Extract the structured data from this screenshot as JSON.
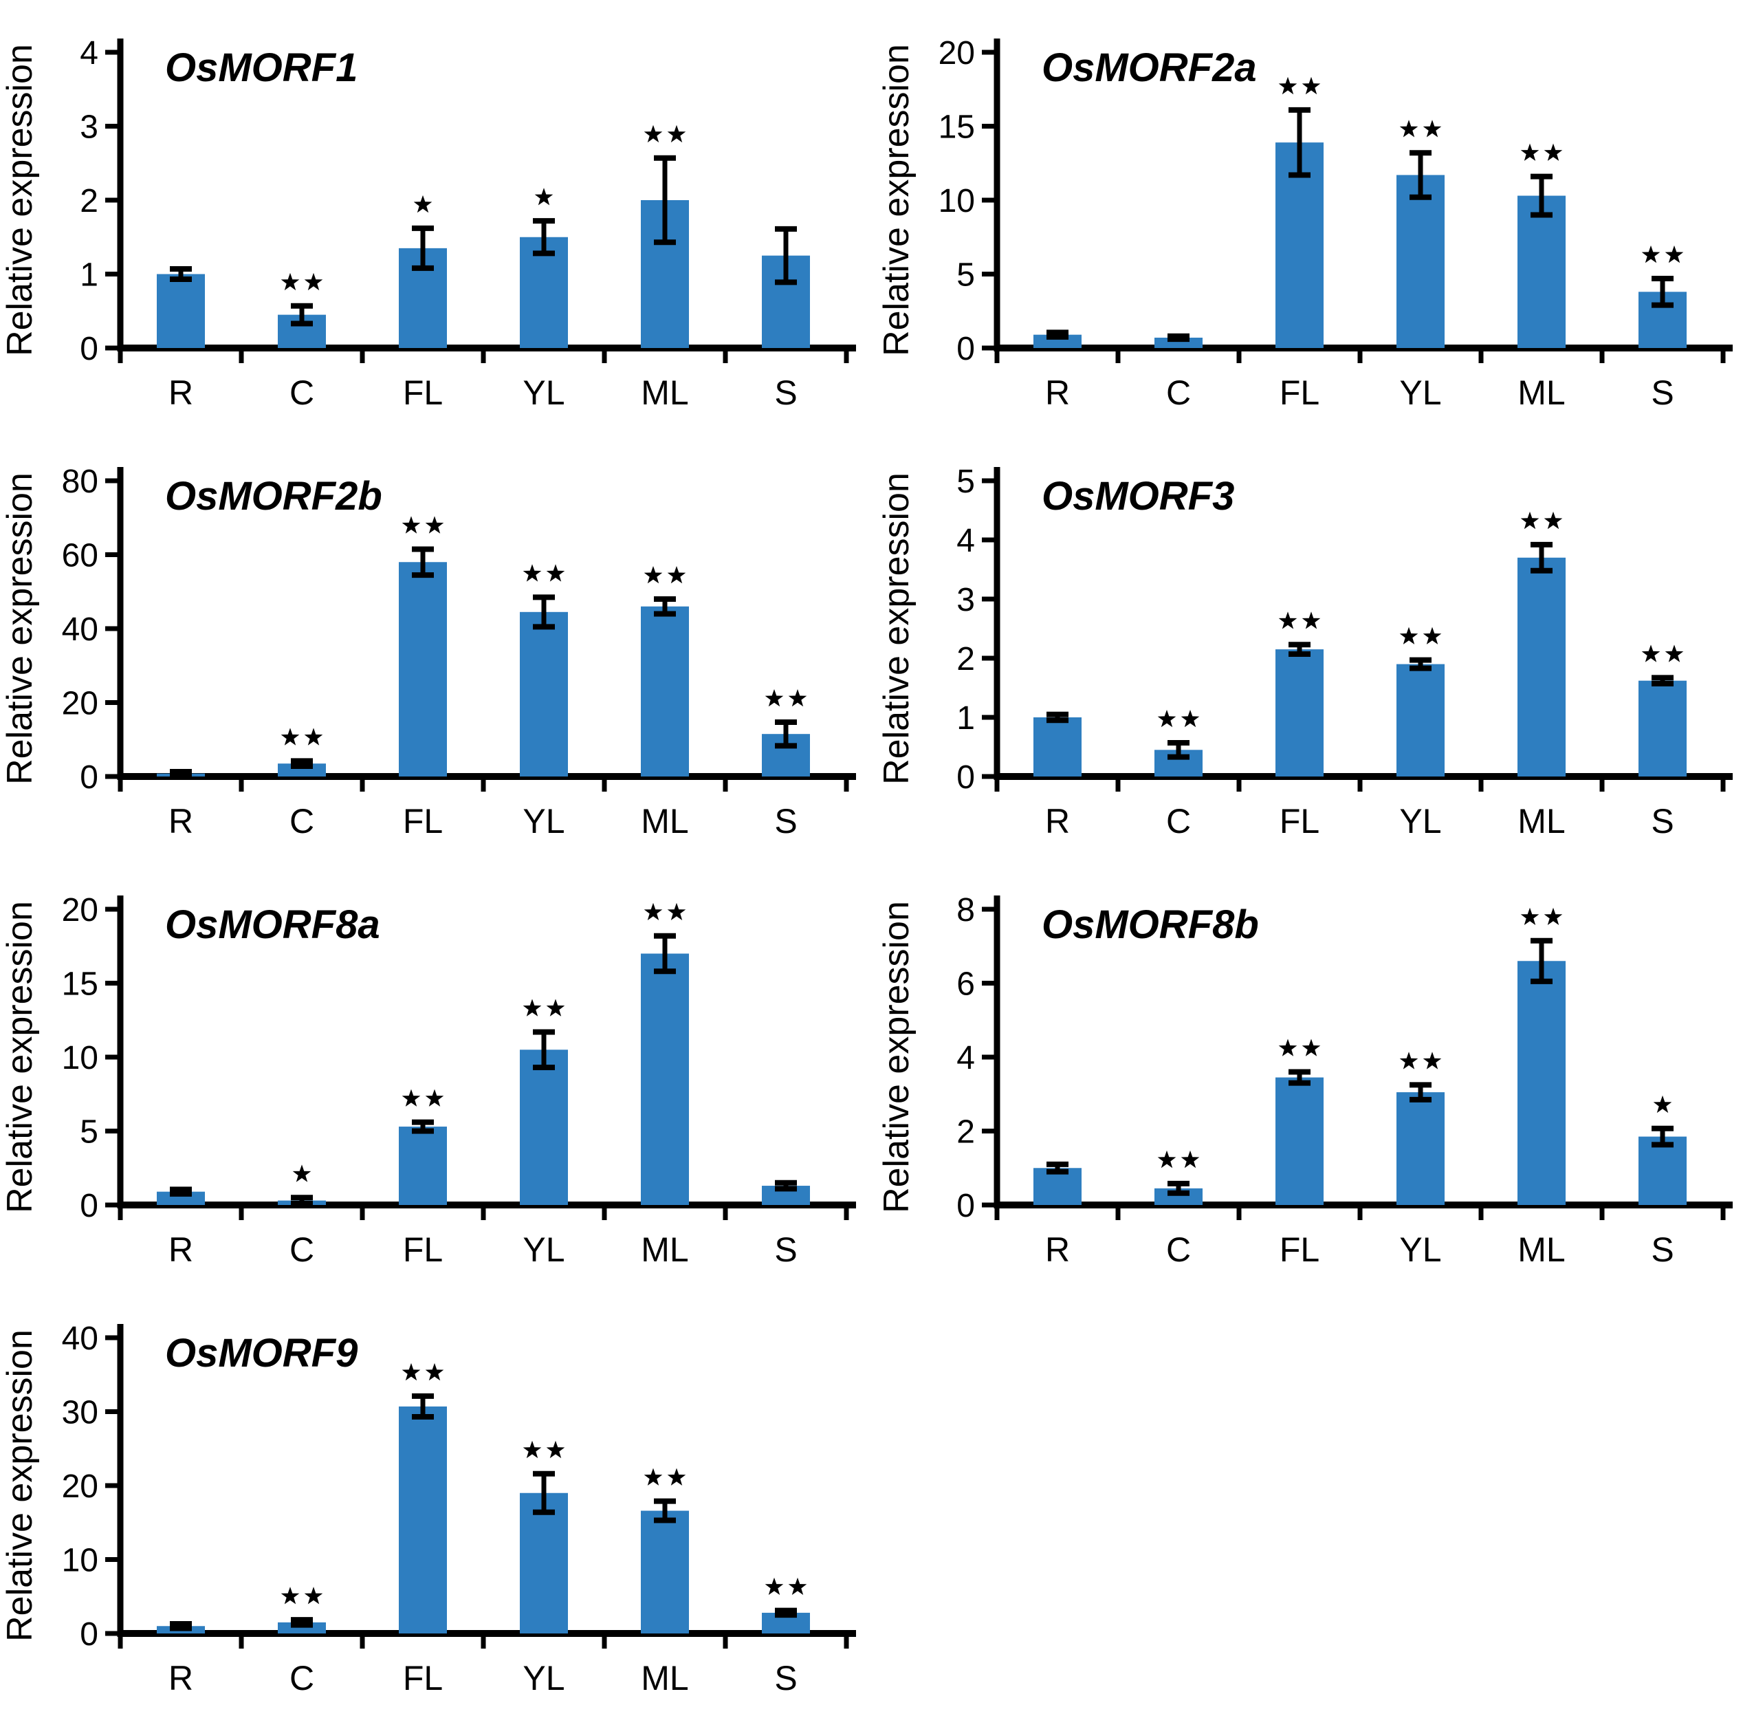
{
  "figure": {
    "background": "#ffffff",
    "bar_color": "#2e7ec0",
    "axis_color": "#000000",
    "error_bar_color": "#000000",
    "significance_marker": "star-icon",
    "ylabel": "Relative expression",
    "categories": [
      "R",
      "C",
      "FL",
      "YL",
      "ML",
      "S"
    ]
  },
  "chart_data": [
    {
      "type": "bar",
      "title": "OsMORF1",
      "xlabel": "",
      "ylabel": "Relative expression",
      "categories": [
        "R",
        "C",
        "FL",
        "YL",
        "ML",
        "S"
      ],
      "values": [
        1.0,
        0.45,
        1.35,
        1.5,
        2.0,
        1.25
      ],
      "errors": [
        0.07,
        0.12,
        0.27,
        0.22,
        0.57,
        0.36
      ],
      "significance": [
        "",
        "**",
        "*",
        "*",
        "**",
        ""
      ],
      "ylim": [
        0,
        4
      ],
      "yticks": [
        0,
        1,
        2,
        3,
        4
      ],
      "grid": false,
      "legend": "none"
    },
    {
      "type": "bar",
      "title": "OsMORF2a",
      "xlabel": "",
      "ylabel": "Relative expression",
      "categories": [
        "R",
        "C",
        "FL",
        "YL",
        "ML",
        "S"
      ],
      "values": [
        0.9,
        0.7,
        13.9,
        11.7,
        10.3,
        3.8
      ],
      "errors": [
        0.15,
        0.1,
        2.2,
        1.5,
        1.3,
        0.9
      ],
      "significance": [
        "",
        "",
        "**",
        "**",
        "**",
        "**"
      ],
      "ylim": [
        0,
        20
      ],
      "yticks": [
        0,
        5,
        10,
        15,
        20
      ],
      "grid": false,
      "legend": "none"
    },
    {
      "type": "bar",
      "title": "OsMORF2b",
      "xlabel": "",
      "ylabel": "Relative expression",
      "categories": [
        "R",
        "C",
        "FL",
        "YL",
        "ML",
        "S"
      ],
      "values": [
        0.8,
        3.5,
        58,
        44.5,
        46,
        11.5
      ],
      "errors": [
        0.5,
        0.7,
        3.5,
        4,
        2,
        3.2
      ],
      "significance": [
        "",
        "**",
        "**",
        "**",
        "**",
        "**"
      ],
      "ylim": [
        0,
        80
      ],
      "yticks": [
        0,
        20,
        40,
        60,
        80
      ],
      "grid": false,
      "legend": "none"
    },
    {
      "type": "bar",
      "title": "OsMORF3",
      "xlabel": "",
      "ylabel": "Relative expression",
      "categories": [
        "R",
        "C",
        "FL",
        "YL",
        "ML",
        "S"
      ],
      "values": [
        1.0,
        0.45,
        2.15,
        1.9,
        3.7,
        1.62
      ],
      "errors": [
        0.05,
        0.12,
        0.08,
        0.07,
        0.22,
        0.05
      ],
      "significance": [
        "",
        "**",
        "**",
        "**",
        "**",
        "**"
      ],
      "ylim": [
        0,
        5
      ],
      "yticks": [
        0,
        1,
        2,
        3,
        4,
        5
      ],
      "grid": false,
      "legend": "none"
    },
    {
      "type": "bar",
      "title": "OsMORF8a",
      "xlabel": "",
      "ylabel": "Relative expression",
      "categories": [
        "R",
        "C",
        "FL",
        "YL",
        "ML",
        "S"
      ],
      "values": [
        0.9,
        0.3,
        5.3,
        10.5,
        17.0,
        1.3
      ],
      "errors": [
        0.15,
        0.2,
        0.3,
        1.2,
        1.2,
        0.2
      ],
      "significance": [
        "",
        "*",
        "**",
        "**",
        "**",
        ""
      ],
      "ylim": [
        0,
        20
      ],
      "yticks": [
        0,
        5,
        10,
        15,
        20
      ],
      "grid": false,
      "legend": "none"
    },
    {
      "type": "bar",
      "title": "OsMORF8b",
      "xlabel": "",
      "ylabel": "Relative expression",
      "categories": [
        "R",
        "C",
        "FL",
        "YL",
        "ML",
        "S"
      ],
      "values": [
        1.0,
        0.45,
        3.45,
        3.05,
        6.6,
        1.85
      ],
      "errors": [
        0.1,
        0.13,
        0.15,
        0.2,
        0.55,
        0.22
      ],
      "significance": [
        "",
        "**",
        "**",
        "**",
        "**",
        "*"
      ],
      "ylim": [
        0,
        8
      ],
      "yticks": [
        0,
        2,
        4,
        6,
        8
      ],
      "grid": false,
      "legend": "none"
    },
    {
      "type": "bar",
      "title": "OsMORF9",
      "xlabel": "",
      "ylabel": "Relative expression",
      "categories": [
        "R",
        "C",
        "FL",
        "YL",
        "ML",
        "S"
      ],
      "values": [
        1.0,
        1.5,
        30.7,
        19.0,
        16.6,
        2.8
      ],
      "errors": [
        0.3,
        0.35,
        1.4,
        2.6,
        1.3,
        0.3
      ],
      "significance": [
        "",
        "**",
        "**",
        "**",
        "**",
        "**"
      ],
      "ylim": [
        0,
        40
      ],
      "yticks": [
        0,
        10,
        20,
        30,
        40
      ],
      "grid": false,
      "legend": "none"
    }
  ]
}
